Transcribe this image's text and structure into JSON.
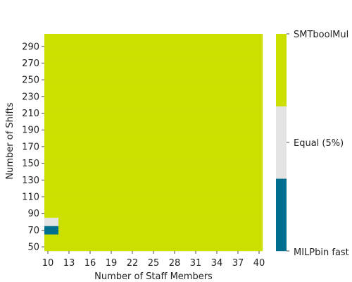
{
  "chart_data": {
    "type": "heatmap",
    "title": "",
    "xlabel": "Number of Staff Members",
    "ylabel": "Number of Shifts",
    "x_values": [
      10,
      11,
      12,
      13,
      14,
      15,
      16,
      17,
      18,
      19,
      20,
      21,
      22,
      23,
      24,
      25,
      26,
      27,
      28,
      29,
      30,
      31,
      32,
      33,
      34,
      35,
      36,
      37,
      38,
      39,
      40
    ],
    "x_tick_labels": [
      "10",
      "13",
      "16",
      "19",
      "22",
      "25",
      "28",
      "31",
      "34",
      "37",
      "40"
    ],
    "y_values": [
      50,
      60,
      70,
      80,
      90,
      100,
      110,
      120,
      130,
      140,
      150,
      160,
      170,
      180,
      190,
      200,
      210,
      220,
      230,
      240,
      250,
      260,
      270,
      280,
      290,
      300
    ],
    "y_tick_labels": [
      "50",
      "70",
      "90",
      "110",
      "130",
      "150",
      "170",
      "190",
      "210",
      "230",
      "250",
      "270",
      "290"
    ],
    "categories": [
      "MILPbin fast",
      "Equal (5%)",
      "SMTboolMul"
    ],
    "category_colors": {
      "MILPbin fast": "#006f8f",
      "Equal (5%)": "#e4e4e4",
      "SMTboolMul": "#cce000"
    },
    "default_category": "SMTboolMul",
    "exceptions": [
      {
        "x": 10,
        "y": 70,
        "category": "MILPbin fast"
      },
      {
        "x": 11,
        "y": 70,
        "category": "MILPbin fast"
      },
      {
        "x": 10,
        "y": 80,
        "category": "Equal (5%)"
      },
      {
        "x": 11,
        "y": 80,
        "category": "Equal (5%)"
      }
    ],
    "colorbar_labels": [
      "MILPbin fast",
      "Equal (5%)",
      "SMTboolMul"
    ],
    "colorbar_position": "right"
  }
}
